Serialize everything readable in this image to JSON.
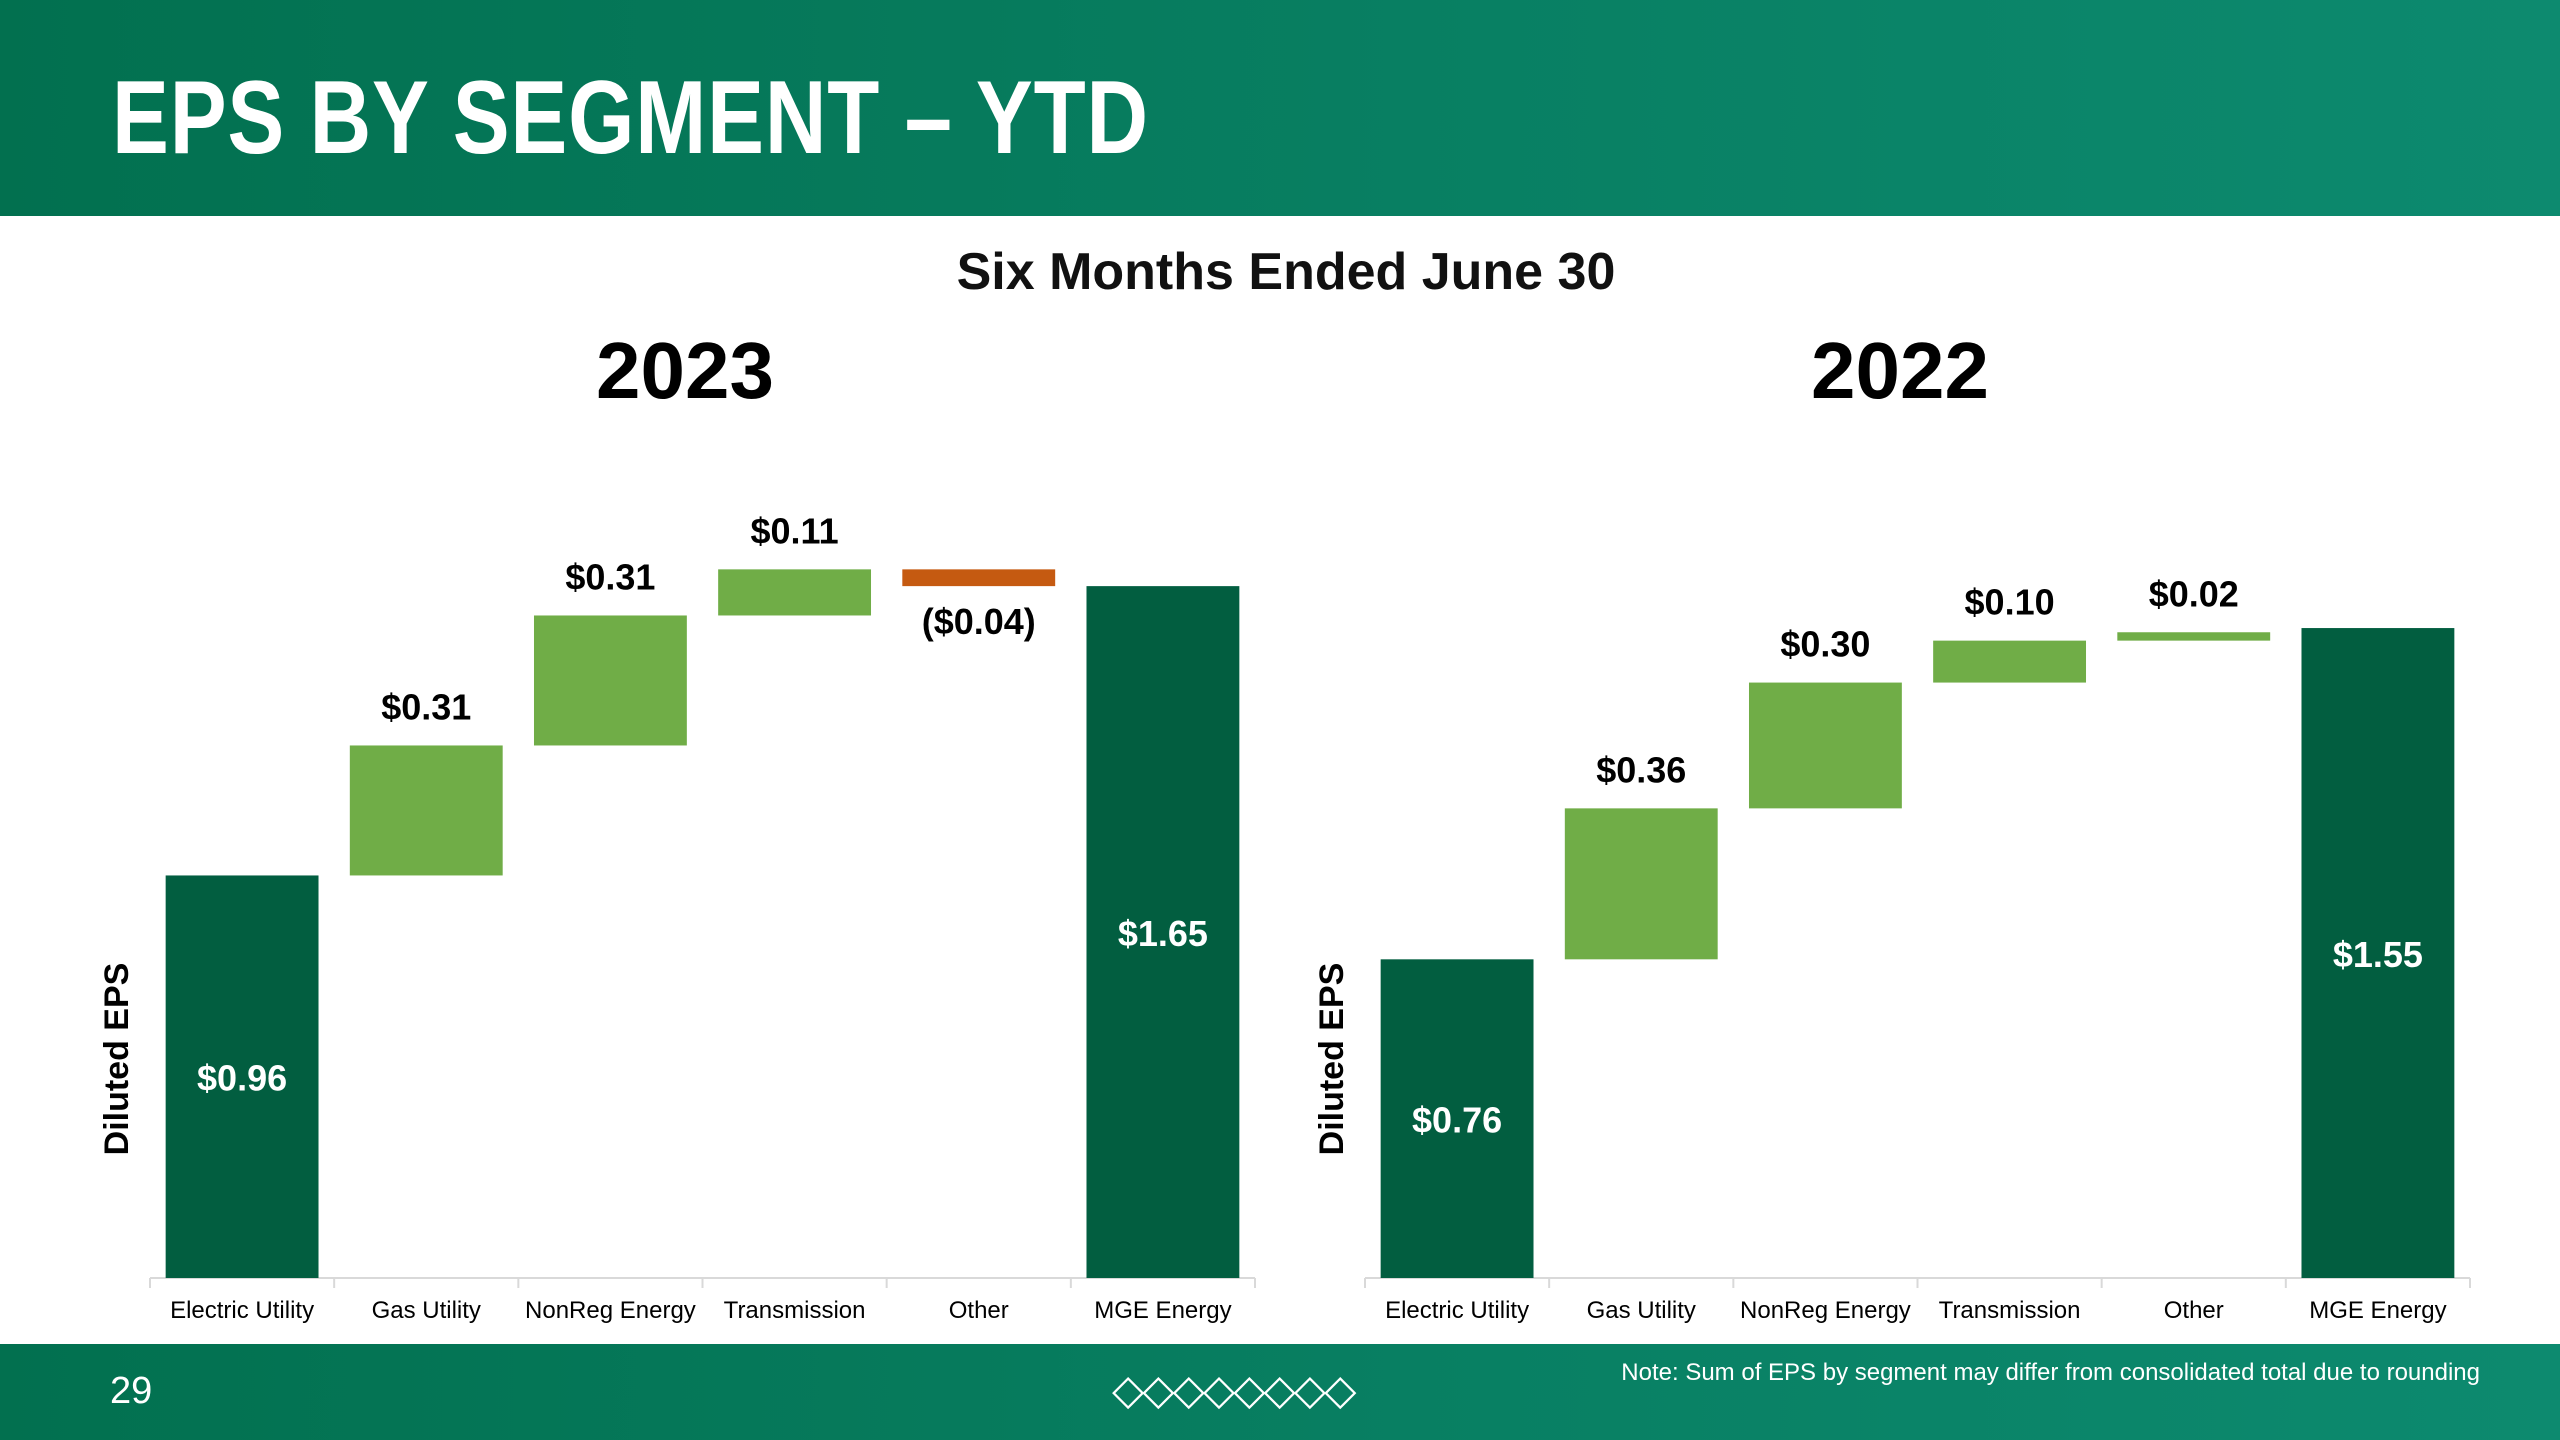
{
  "header": {
    "title": "EPS BY SEGMENT – YTD"
  },
  "subtitle": "Six Months Ended June 30",
  "colors": {
    "total": "#025e40",
    "increase": "#70ad47",
    "decrease": "#c55a11",
    "header_bg": "#02704f",
    "axis": "#d9d9d9"
  },
  "chart_data": [
    {
      "type": "bar",
      "subtype": "waterfall",
      "title": "2023",
      "ylabel": "Diluted EPS",
      "ylim": [
        0,
        1.76
      ],
      "categories": [
        "Electric Utility",
        "Gas Utility",
        "NonReg Energy",
        "Transmission",
        "Other",
        "MGE Energy"
      ],
      "values": [
        0.96,
        0.31,
        0.31,
        0.11,
        -0.04,
        1.65
      ],
      "kinds": [
        "total",
        "increase",
        "increase",
        "increase",
        "decrease",
        "total"
      ],
      "labels": [
        "$0.96",
        "$0.31",
        "$0.31",
        "$0.11",
        "($0.04)",
        "$1.65"
      ]
    },
    {
      "type": "bar",
      "subtype": "waterfall",
      "title": "2022",
      "ylabel": "Diluted EPS",
      "ylim": [
        0,
        1.76
      ],
      "categories": [
        "Electric Utility",
        "Gas Utility",
        "NonReg Energy",
        "Transmission",
        "Other",
        "MGE Energy"
      ],
      "values": [
        0.76,
        0.36,
        0.3,
        0.1,
        0.02,
        1.55
      ],
      "kinds": [
        "total",
        "increase",
        "increase",
        "increase",
        "increase",
        "total"
      ],
      "labels": [
        "$0.76",
        "$0.36",
        "$0.30",
        "$0.10",
        "$0.02",
        "$1.55"
      ]
    }
  ],
  "footer": {
    "page_number": "29",
    "decoration": "◇◇◇◇◇◇◇◇",
    "note": "Note: Sum of EPS by segment may differ from consolidated total due to rounding"
  }
}
